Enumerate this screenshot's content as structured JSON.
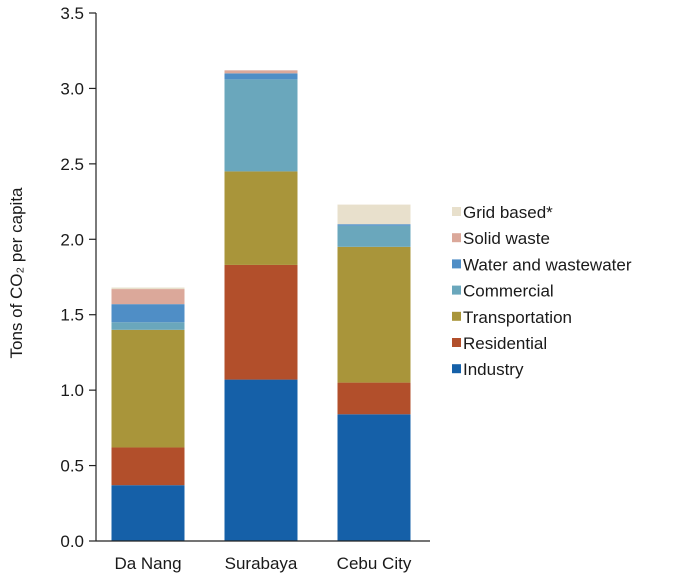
{
  "chart_data": {
    "type": "bar",
    "stacked": true,
    "title": "",
    "xlabel": "",
    "ylabel": "Tons of CO₂ per capita",
    "ylim": [
      0,
      3.5
    ],
    "yticks": [
      "0.0",
      "0.5",
      "1.0",
      "1.5",
      "2.0",
      "2.5",
      "3.0",
      "3.5"
    ],
    "grid": false,
    "legend_position": "right",
    "categories": [
      "Da Nang",
      "Surabaya",
      "Cebu City"
    ],
    "series": [
      {
        "name": "Industry",
        "color": "#1560a8",
        "values": [
          0.37,
          1.07,
          0.84
        ]
      },
      {
        "name": "Residential",
        "color": "#b24f2b",
        "values": [
          0.25,
          0.76,
          0.21
        ]
      },
      {
        "name": "Transportation",
        "color": "#a9953a",
        "values": [
          0.78,
          0.62,
          0.9
        ]
      },
      {
        "name": "Commercial",
        "color": "#6aa7bc",
        "values": [
          0.05,
          0.61,
          0.14
        ]
      },
      {
        "name": "Water and wastewater",
        "color": "#4f8ec6",
        "values": [
          0.12,
          0.04,
          0.01
        ]
      },
      {
        "name": "Solid waste",
        "color": "#dba89a",
        "values": [
          0.1,
          0.02,
          0.0
        ]
      },
      {
        "name": "Grid based*",
        "color": "#e8e0cc",
        "values": [
          0.01,
          0.0,
          0.13
        ]
      }
    ]
  }
}
